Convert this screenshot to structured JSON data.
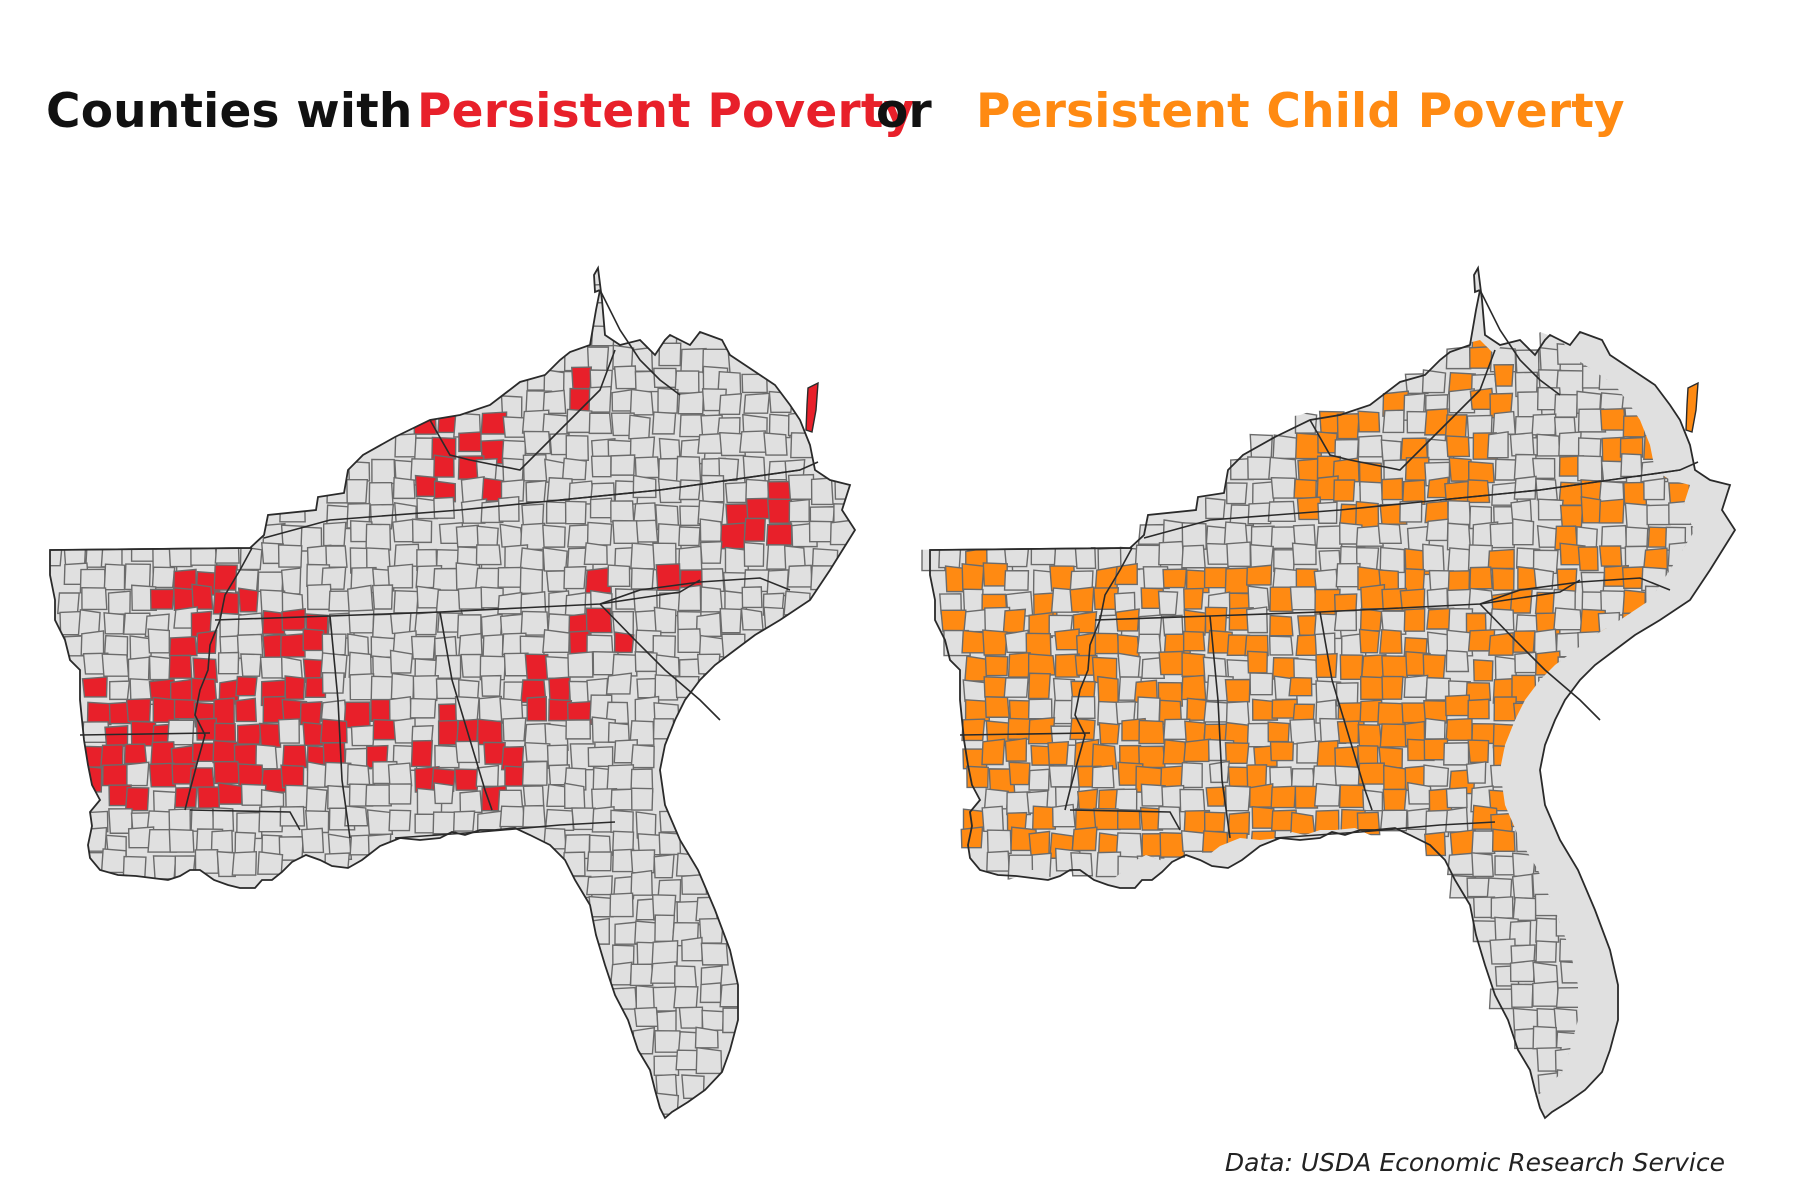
{
  "title": {
    "prefix": "Counties with",
    "highlight_a": "Persistent Poverty",
    "connector": "or",
    "highlight_b": "Persistent Child Poverty"
  },
  "source": "Data: USDA Economic Research Service",
  "colors": {
    "persistent_poverty": "#e8202a",
    "persistent_child_poverty": "#ff8a12",
    "county_fill": "#e0e0e0",
    "county_border": "#6b6b6b",
    "state_border": "#2a2a2a",
    "title_text": "#111111"
  },
  "maps": [
    {
      "id": "persistent-poverty",
      "highlight": "persistent_poverty"
    },
    {
      "id": "persistent-child-poverty",
      "highlight": "persistent_child_poverty"
    }
  ]
}
